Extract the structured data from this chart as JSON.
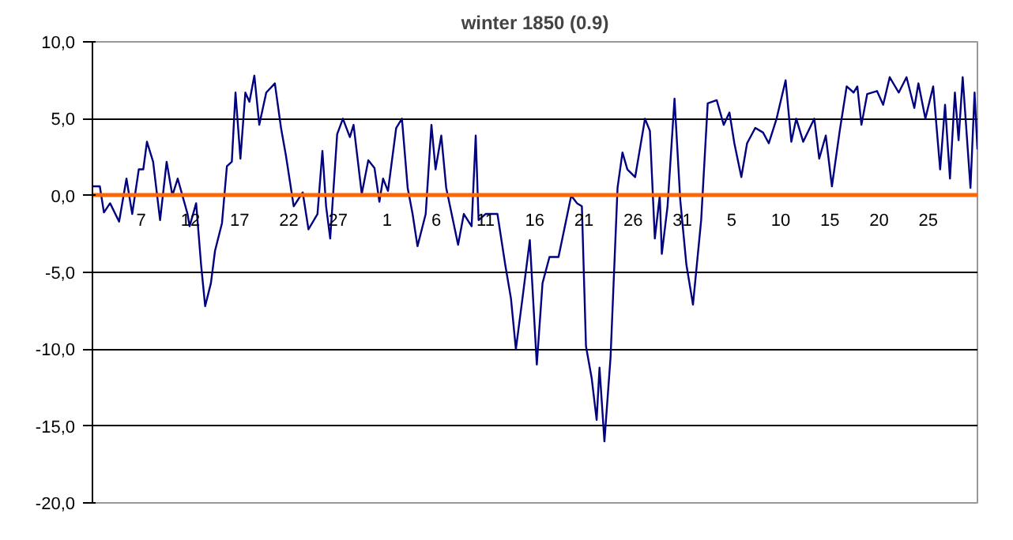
{
  "chart_data": {
    "type": "line",
    "title": "winter 1850 (0.9)",
    "x": [
      "1849-12-02T01:00",
      "1849-12-02T19:00",
      "1849-12-03T05:00",
      "1849-12-03T20:00",
      "1849-12-04T18:00",
      "1849-12-05T12:00",
      "1849-12-06T02:00",
      "1849-12-06T18:00",
      "1849-12-07T05:00",
      "1849-12-07T14:00",
      "1849-12-08T05:00",
      "1849-12-08T22:00",
      "1849-12-09T14:00",
      "1849-12-10T04:00",
      "1849-12-10T17:00",
      "1849-12-11T17:00",
      "1849-12-11T22:00",
      "1849-12-12T14:00",
      "1849-12-13T02:00",
      "1849-12-13T12:00",
      "1849-12-14T02:00",
      "1849-12-14T12:00",
      "1849-12-15T05:00",
      "1849-12-15T17:00",
      "1849-12-16T05:00",
      "1849-12-16T14:00",
      "1849-12-17T02:00",
      "1849-12-17T14:00",
      "1849-12-18T00:00",
      "1849-12-18T12:00",
      "1849-12-19T00:00",
      "1849-12-19T17:00",
      "1849-12-20T14:00",
      "1849-12-21T05:00",
      "1849-12-21T17:00",
      "1849-12-22T12:00",
      "1849-12-23T10:00",
      "1849-12-24T00:00",
      "1849-12-24T22:00",
      "1849-12-25T10:00",
      "1849-12-25T19:00",
      "1849-12-26T05:00",
      "1849-12-26T22:00",
      "1849-12-27T12:00",
      "1849-12-28T05:00",
      "1849-12-28T14:00",
      "1849-12-29T10:00",
      "1849-12-30T02:00",
      "1849-12-30T17:00",
      "1849-12-31T05:00",
      "1849-12-31T14:00",
      "1850-01-01T02:00",
      "1850-01-01T22:00",
      "1850-01-02T12:00",
      "1850-01-03T02:00",
      "1850-01-03T14:00",
      "1850-01-04T02:00",
      "1850-01-04T22:00",
      "1850-01-05T12:00",
      "1850-01-05T22:00",
      "1850-01-06T12:00",
      "1850-01-07T00:00",
      "1850-01-08T05:00",
      "1850-01-08T19:00",
      "1850-01-09T14:00",
      "1850-01-10T00:00",
      "1850-01-10T07:00",
      "1850-01-11T00:00",
      "1850-01-11T17:00",
      "1850-01-12T05:00",
      "1850-01-13T00:00",
      "1850-01-13T14:00",
      "1850-01-14T02:00",
      "1850-01-14T19:00",
      "1850-01-15T12:00",
      "1850-01-16T05:00",
      "1850-01-16T19:00",
      "1850-01-17T12:00",
      "1850-01-18T10:00",
      "1850-01-19T00:00",
      "1850-01-19T17:00",
      "1850-01-20T07:00",
      "1850-01-20T19:00",
      "1850-01-21T05:00",
      "1850-01-21T19:00",
      "1850-01-22T07:00",
      "1850-01-22T14:00",
      "1850-01-23T02:00",
      "1850-01-23T17:00",
      "1850-01-24T10:00",
      "1850-01-24T22:00",
      "1850-01-25T10:00",
      "1850-01-26T05:00",
      "1850-01-27T05:00",
      "1850-01-27T17:00",
      "1850-01-28T05:00",
      "1850-01-28T17:00",
      "1850-01-28T22:00",
      "1850-01-29T12:00",
      "1850-01-30T05:00",
      "1850-01-30T19:00",
      "1850-01-31T10:00",
      "1850-02-01T02:00",
      "1850-02-01T22:00",
      "1850-02-02T14:00",
      "1850-02-03T12:00",
      "1850-02-04T05:00",
      "1850-02-04T19:00",
      "1850-02-05T07:00",
      "1850-02-06T00:00",
      "1850-02-06T14:00",
      "1850-02-07T10:00",
      "1850-02-08T05:00",
      "1850-02-08T19:00",
      "1850-02-09T14:00",
      "1850-02-10T12:00",
      "1850-02-11T02:00",
      "1850-02-11T14:00",
      "1850-02-12T07:00",
      "1850-02-13T10:00",
      "1850-02-13T22:00",
      "1850-02-14T14:00",
      "1850-02-15T05:00",
      "1850-02-16T00:00",
      "1850-02-16T17:00",
      "1850-02-17T10:00",
      "1850-02-17T19:00",
      "1850-02-18T05:00",
      "1850-02-18T19:00",
      "1850-02-19T19:00",
      "1850-02-20T10:00",
      "1850-02-21T02:00",
      "1850-02-22T00:00",
      "1850-02-22T19:00",
      "1850-02-23T14:00",
      "1850-02-24T00:00",
      "1850-02-24T17:00",
      "1850-02-25T12:00",
      "1850-02-26T05:00",
      "1850-02-26T17:00",
      "1850-02-27T05:00",
      "1850-02-27T17:00",
      "1850-02-28T02:00",
      "1850-02-28T12:00",
      "1850-03-01T07:00",
      "1850-03-01T17:00",
      "1850-03-02T00:00"
    ],
    "series": [
      {
        "color": "#000080",
        "values": [
          0.6,
          0.6,
          -1.1,
          -0.5,
          -1.7,
          1.1,
          -1.2,
          1.7,
          1.7,
          3.5,
          2.2,
          -1.6,
          2.2,
          0,
          1.1,
          -1.2,
          -2.0,
          -0.5,
          -4.5,
          -7.2,
          -5.7,
          -3.6,
          -1.8,
          1.9,
          2.2,
          6.7,
          2.4,
          6.7,
          6.1,
          7.8,
          4.6,
          6.7,
          7.3,
          4.4,
          2.6,
          -0.7,
          0.2,
          -2.2,
          -1.2,
          2.9,
          -0.7,
          -2.8,
          4.0,
          5.0,
          3.8,
          4.6,
          0.1,
          2.3,
          1.8,
          -0.4,
          1.1,
          0.3,
          4.4,
          5.0,
          0.5,
          -1.2,
          -3.3,
          -1.2,
          4.6,
          1.7,
          3.9,
          0.5,
          -3.2,
          -1.2,
          -2.0,
          3.9,
          -1.6,
          -1.2,
          -1.2,
          -1.2,
          -4.5,
          -6.7,
          -10.0,
          -6.5,
          -2.9,
          -11.0,
          -5.7,
          -4.0,
          -4.0,
          -2.2,
          0,
          -0.5,
          -0.7,
          -9.8,
          -11.9,
          -14.6,
          -11.2,
          -16.0,
          -10.5,
          0.5,
          2.8,
          1.7,
          1.2,
          5.0,
          4.2,
          -2.8,
          0,
          -3.8,
          -0.7,
          6.3,
          -0.3,
          -4.5,
          -7.1,
          -1.6,
          6.0,
          6.2,
          4.6,
          5.4,
          3.4,
          1.2,
          3.4,
          4.4,
          4.1,
          3.4,
          5.0,
          7.5,
          3.5,
          5.0,
          3.5,
          5.0,
          2.4,
          3.9,
          0.6,
          4.2,
          7.1,
          6.7,
          7.1,
          4.6,
          6.6,
          6.8,
          5.9,
          7.7,
          6.7,
          7.7,
          5.7,
          7.3,
          5.0,
          7.1,
          1.7,
          5.9,
          1.1,
          6.7,
          3.6,
          7.7,
          0.5,
          6.7,
          3.0
        ]
      }
    ],
    "xlim": [
      "1849-12-02T01:00",
      "1850-03-02T00:00"
    ],
    "xticks": [
      {
        "value": "1849-12-07",
        "label": "7"
      },
      {
        "value": "1849-12-12",
        "label": "12"
      },
      {
        "value": "1849-12-17",
        "label": "17"
      },
      {
        "value": "1849-12-22",
        "label": "22"
      },
      {
        "value": "1849-12-27",
        "label": "27"
      },
      {
        "value": "1850-01-01",
        "label": "1"
      },
      {
        "value": "1850-01-06",
        "label": "6"
      },
      {
        "value": "1850-01-11",
        "label": "11"
      },
      {
        "value": "1850-01-16",
        "label": "16"
      },
      {
        "value": "1850-01-21",
        "label": "21"
      },
      {
        "value": "1850-01-26",
        "label": "26"
      },
      {
        "value": "1850-01-31",
        "label": "31"
      },
      {
        "value": "1850-02-05",
        "label": "5"
      },
      {
        "value": "1850-02-10",
        "label": "10"
      },
      {
        "value": "1850-02-15",
        "label": "15"
      },
      {
        "value": "1850-02-20",
        "label": "20"
      },
      {
        "value": "1850-02-25",
        "label": "25"
      }
    ],
    "ylim": [
      -20,
      10
    ],
    "yticks": [
      {
        "value": -20,
        "label": "-20,0"
      },
      {
        "value": -15,
        "label": "-15,0"
      },
      {
        "value": -10,
        "label": "-10,0"
      },
      {
        "value": -5,
        "label": "-5,0"
      },
      {
        "value": 0,
        "label": "0,0"
      },
      {
        "value": 5,
        "label": "5,0"
      },
      {
        "value": 10,
        "label": "10,0"
      }
    ],
    "grid": "y"
  }
}
